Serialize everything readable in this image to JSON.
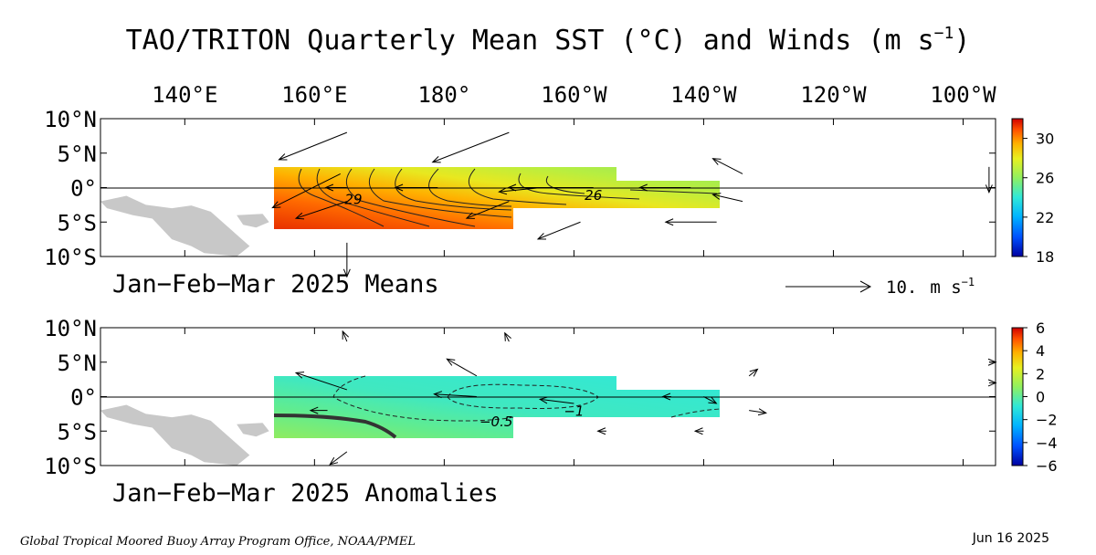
{
  "title": "TAO/TRITON Quarterly Mean SST (°C) and Winds (m s",
  "title_sup": "−1",
  "title_close": ")",
  "lon_ticks": [
    "140°E",
    "160°E",
    "180°",
    "160°W",
    "140°W",
    "120°W",
    "100°W"
  ],
  "lon_values": [
    140,
    160,
    180,
    200,
    220,
    240,
    260
  ],
  "lat_ticks": [
    "10°N",
    "5°N",
    "0°",
    "5°S",
    "10°S"
  ],
  "lat_values": [
    10,
    5,
    0,
    -5,
    -10
  ],
  "map_extent": {
    "lon_min": 127,
    "lon_max": 265,
    "lat_min": -10,
    "lat_max": 10
  },
  "footer_left": "Global Tropical Moored Buoy Array Program Office, NOAA/PMEL",
  "footer_right": "Jun 16 2025",
  "colors": {
    "land": "#c8c8c8",
    "frame": "#000000"
  },
  "chart_data": [
    {
      "type": "heatmap",
      "label": "Jan−Feb−Mar 2025 Means",
      "variable": "SST (°C)",
      "colorbar": {
        "min": 18,
        "max": 32,
        "ticks": [
          18,
          22,
          26,
          30
        ],
        "stops": [
          "#0000a0",
          "#0050ff",
          "#00c8ff",
          "#40e8c8",
          "#90f060",
          "#e8f020",
          "#ffb000",
          "#ff5000",
          "#d00000"
        ]
      },
      "contour_labels": [
        {
          "value": "29",
          "lon": 166,
          "lat": -1.6
        },
        {
          "value": "26",
          "lon": 203,
          "lat": -1.0
        }
      ],
      "reference_vector": {
        "label": "10.",
        "unit": "m s",
        "unit_sup": "−1",
        "speed": 10
      },
      "winds": [
        {
          "lon": 165,
          "lat": 8,
          "u": -8,
          "v": -3.2
        },
        {
          "lon": 190,
          "lat": 8,
          "u": -9,
          "v": -3.5
        },
        {
          "lon": 226,
          "lat": 2,
          "u": -3.5,
          "v": 1.8
        },
        {
          "lon": 226,
          "lat": -2,
          "u": -3.5,
          "v": 0.8
        },
        {
          "lon": 164,
          "lat": 2,
          "u": -8,
          "v": -4
        },
        {
          "lon": 165,
          "lat": 0,
          "u": -2.5,
          "v": 0
        },
        {
          "lon": 179,
          "lat": 0,
          "u": -5,
          "v": 0
        },
        {
          "lon": 195,
          "lat": 0,
          "u": -5,
          "v": -0.5
        },
        {
          "lon": 203,
          "lat": 0,
          "u": -10,
          "v": 0
        },
        {
          "lon": 218,
          "lat": 0,
          "u": -6,
          "v": 0
        },
        {
          "lon": 165,
          "lat": -2,
          "u": -6,
          "v": -2
        },
        {
          "lon": 190,
          "lat": -2,
          "u": -5,
          "v": -2
        },
        {
          "lon": 222,
          "lat": -5,
          "u": -6,
          "v": 0
        },
        {
          "lon": 201,
          "lat": -5,
          "u": -5,
          "v": -2
        },
        {
          "lon": 165,
          "lat": -8,
          "u": 0,
          "v": -4
        },
        {
          "lon": 264,
          "lat": 3,
          "u": 0,
          "v": -3
        }
      ]
    },
    {
      "type": "heatmap",
      "label": "Jan−Feb−Mar 2025 Anomalies",
      "variable": "SST anomaly (°C)",
      "colorbar": {
        "min": -6,
        "max": 6,
        "ticks": [
          -6,
          -4,
          -2,
          0,
          2,
          4,
          6
        ],
        "stops": [
          "#0000a0",
          "#0050ff",
          "#00c8ff",
          "#40e8c8",
          "#90f060",
          "#e8f020",
          "#ffb000",
          "#ff5000",
          "#d00000"
        ]
      },
      "contour_labels": [
        {
          "value": "−0.5",
          "lon": 188,
          "lat": -3.5
        },
        {
          "value": "−1",
          "lon": 200,
          "lat": -2
        }
      ],
      "winds": [
        {
          "lon": 165,
          "lat": 8,
          "u": -0.5,
          "v": 1.2
        },
        {
          "lon": 190,
          "lat": 8,
          "u": -0.5,
          "v": 1
        },
        {
          "lon": 185,
          "lat": 3,
          "u": -3.5,
          "v": 2
        },
        {
          "lon": 165,
          "lat": 1,
          "u": -6,
          "v": 2
        },
        {
          "lon": 162,
          "lat": -2,
          "u": -2,
          "v": 0
        },
        {
          "lon": 185,
          "lat": 0,
          "u": -5,
          "v": 0.3
        },
        {
          "lon": 200,
          "lat": -1,
          "u": -4,
          "v": 0.5
        },
        {
          "lon": 215,
          "lat": 0,
          "u": -1,
          "v": 0
        },
        {
          "lon": 220,
          "lat": 0,
          "u": 1.5,
          "v": -0.8
        },
        {
          "lon": 227,
          "lat": 3,
          "u": 1,
          "v": 0.8
        },
        {
          "lon": 227,
          "lat": -2,
          "u": 2,
          "v": -0.3
        },
        {
          "lon": 205,
          "lat": -5,
          "u": -1,
          "v": 0
        },
        {
          "lon": 220,
          "lat": -5,
          "u": -1,
          "v": 0
        },
        {
          "lon": 165,
          "lat": -8,
          "u": -2,
          "v": -1.5
        },
        {
          "lon": 264,
          "lat": 5,
          "u": 0.8,
          "v": 0
        },
        {
          "lon": 264,
          "lat": 2,
          "u": 0.8,
          "v": 0
        }
      ]
    }
  ]
}
